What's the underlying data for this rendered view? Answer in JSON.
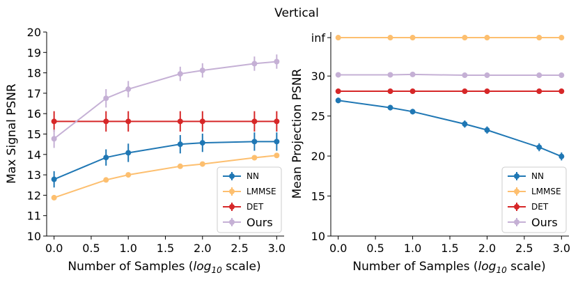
{
  "suptitle": "Vertical",
  "chart_data": [
    {
      "type": "line",
      "title": "",
      "xlabel": "Number of Samples (log10 scale)",
      "xlabel_parts": {
        "pre": "Number of Samples (",
        "log": "log",
        "sub": "10",
        "post": " scale)"
      },
      "ylabel": "Max Signal PSNR",
      "xlim": [
        -0.1,
        3.1
      ],
      "ylim": [
        10,
        20
      ],
      "xticks": [
        "0.0",
        "0.5",
        "1.0",
        "1.5",
        "2.0",
        "2.5",
        "3.0"
      ],
      "xtick_values": [
        0,
        0.5,
        1,
        1.5,
        2,
        2.5,
        3
      ],
      "yticks": [
        "10",
        "11",
        "12",
        "13",
        "14",
        "15",
        "16",
        "17",
        "18",
        "19",
        "20"
      ],
      "ytick_values": [
        10,
        11,
        12,
        13,
        14,
        15,
        16,
        17,
        18,
        19,
        20
      ],
      "legend_position": "bottom-right",
      "x": [
        0,
        0.7,
        1.0,
        1.7,
        2.0,
        2.7,
        3.0
      ],
      "series": [
        {
          "name": "NN",
          "color": "#1f77b4",
          "values": [
            12.78,
            13.85,
            14.08,
            14.5,
            14.57,
            14.63,
            14.63
          ],
          "errors": [
            0.4,
            0.4,
            0.45,
            0.45,
            0.45,
            0.45,
            0.45
          ]
        },
        {
          "name": "LMMSE",
          "color": "#fdbf6f",
          "values": [
            11.88,
            12.75,
            13.0,
            13.42,
            13.53,
            13.84,
            13.95
          ],
          "errors": [
            0,
            0,
            0,
            0,
            0,
            0,
            0
          ]
        },
        {
          "name": "DET",
          "color": "#d62728",
          "values": [
            15.62,
            15.62,
            15.62,
            15.62,
            15.62,
            15.62,
            15.62
          ],
          "errors": [
            0.5,
            0.5,
            0.5,
            0.5,
            0.5,
            0.5,
            0.5
          ]
        },
        {
          "name": "Ours",
          "color": "#c5b0d5",
          "values": [
            14.77,
            16.75,
            17.2,
            17.95,
            18.12,
            18.45,
            18.55
          ],
          "errors": [
            0.45,
            0.45,
            0.4,
            0.35,
            0.35,
            0.35,
            0.35
          ]
        }
      ]
    },
    {
      "type": "line",
      "title": "",
      "xlabel": "Number of Samples (log10 scale)",
      "xlabel_parts": {
        "pre": "Number of Samples (",
        "log": "log",
        "sub": "10",
        "post": " scale)"
      },
      "ylabel": "Mean Projection PSNR",
      "xlim": [
        -0.1,
        3.1
      ],
      "ylim": [
        10,
        35.5
      ],
      "xticks": [
        "0.0",
        "0.5",
        "1.0",
        "1.5",
        "2.0",
        "2.5",
        "3.0"
      ],
      "xtick_values": [
        0,
        0.5,
        1,
        1.5,
        2,
        2.5,
        3
      ],
      "yticks": [
        "10",
        "15",
        "20",
        "25",
        "30",
        "inf"
      ],
      "ytick_values": [
        10,
        15,
        20,
        25,
        30,
        34.8
      ],
      "legend_position": "bottom-right",
      "x": [
        0,
        0.7,
        1.0,
        1.7,
        2.0,
        2.7,
        3.0
      ],
      "series": [
        {
          "name": "NN",
          "color": "#1f77b4",
          "values": [
            26.95,
            26.05,
            25.55,
            24.0,
            23.25,
            21.1,
            19.95
          ],
          "errors": [
            0.35,
            0.35,
            0.35,
            0.45,
            0.45,
            0.5,
            0.5
          ]
        },
        {
          "name": "LMMSE",
          "color": "#fdbf6f",
          "values": [
            34.8,
            34.8,
            34.8,
            34.8,
            34.8,
            34.8,
            34.8
          ],
          "errors": [
            0,
            0,
            0,
            0,
            0,
            0,
            0
          ],
          "value_labels": [
            "inf",
            "inf",
            "inf",
            "inf",
            "inf",
            "inf",
            "inf"
          ]
        },
        {
          "name": "DET",
          "color": "#d62728",
          "values": [
            28.1,
            28.1,
            28.1,
            28.1,
            28.1,
            28.1,
            28.1
          ],
          "errors": [
            0.3,
            0.3,
            0.3,
            0.3,
            0.3,
            0.3,
            0.3
          ]
        },
        {
          "name": "Ours",
          "color": "#c5b0d5",
          "values": [
            30.15,
            30.15,
            30.2,
            30.1,
            30.1,
            30.1,
            30.1
          ],
          "errors": [
            0.3,
            0.3,
            0.3,
            0.3,
            0.3,
            0.3,
            0.3
          ]
        }
      ]
    }
  ]
}
